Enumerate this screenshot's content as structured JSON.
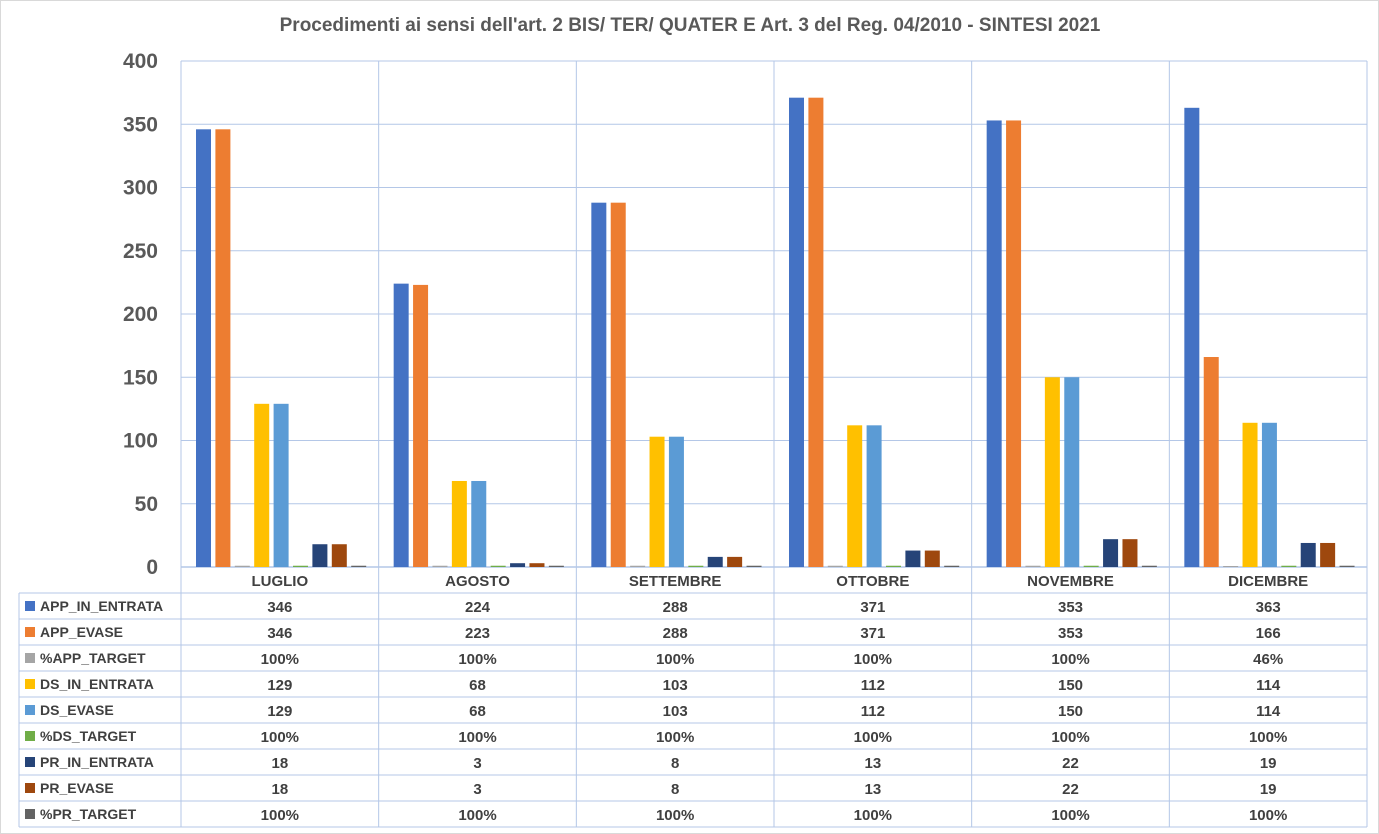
{
  "chart_data": {
    "type": "bar",
    "title": "Procedimenti ai sensi dell'art. 2 BIS/ TER/ QUATER E Art. 3 del Reg. 04/2010        -        SINTESI 2021",
    "xlabel": "",
    "ylabel": "",
    "ylim": [
      0,
      400
    ],
    "yticks": [
      "0",
      "50",
      "100",
      "150",
      "200",
      "250",
      "300",
      "350",
      "400"
    ],
    "grid": true,
    "legend": "data-table-left",
    "categories": [
      "LUGLIO",
      "AGOSTO",
      "SETTEMBRE",
      "OTTOBRE",
      "NOVEMBRE",
      "DICEMBRE"
    ],
    "series": [
      {
        "name": "APP_IN_ENTRATA",
        "color": "#4472c4",
        "values": [
          346,
          224,
          288,
          371,
          353,
          363
        ],
        "labels": [
          "346",
          "224",
          "288",
          "371",
          "353",
          "363"
        ]
      },
      {
        "name": "APP_EVASE",
        "color": "#ed7d31",
        "values": [
          346,
          223,
          288,
          371,
          353,
          166
        ],
        "labels": [
          "346",
          "223",
          "288",
          "371",
          "353",
          "166"
        ]
      },
      {
        "name": "%APP_TARGET",
        "color": "#a5a5a5",
        "values": [
          1,
          1,
          1,
          1,
          1,
          0.46
        ],
        "labels": [
          "100%",
          "100%",
          "100%",
          "100%",
          "100%",
          "46%"
        ]
      },
      {
        "name": "DS_IN_ENTRATA",
        "color": "#ffc000",
        "values": [
          129,
          68,
          103,
          112,
          150,
          114
        ],
        "labels": [
          "129",
          "68",
          "103",
          "112",
          "150",
          "114"
        ]
      },
      {
        "name": "DS_EVASE",
        "color": "#5b9bd5",
        "values": [
          129,
          68,
          103,
          112,
          150,
          114
        ],
        "labels": [
          "129",
          "68",
          "103",
          "112",
          "150",
          "114"
        ]
      },
      {
        "name": "%DS_TARGET",
        "color": "#70ad47",
        "values": [
          1,
          1,
          1,
          1,
          1,
          1
        ],
        "labels": [
          "100%",
          "100%",
          "100%",
          "100%",
          "100%",
          "100%"
        ]
      },
      {
        "name": "PR_IN_ENTRATA",
        "color": "#264478",
        "values": [
          18,
          3,
          8,
          13,
          22,
          19
        ],
        "labels": [
          "18",
          "3",
          "8",
          "13",
          "22",
          "19"
        ]
      },
      {
        "name": "PR_EVASE",
        "color": "#9e480e",
        "values": [
          18,
          3,
          8,
          13,
          22,
          19
        ],
        "labels": [
          "18",
          "3",
          "8",
          "13",
          "22",
          "19"
        ]
      },
      {
        "name": "%PR_TARGET",
        "color": "#636363",
        "values": [
          1,
          1,
          1,
          1,
          1,
          1
        ],
        "labels": [
          "100%",
          "100%",
          "100%",
          "100%",
          "100%",
          "100%"
        ]
      }
    ]
  }
}
